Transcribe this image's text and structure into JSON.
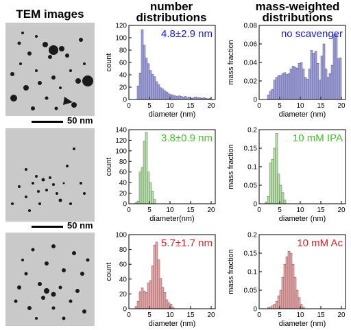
{
  "headers": {
    "tem": "TEM images",
    "number": "number distributions",
    "mass": "mass-weighted distributions"
  },
  "scale_bar_label": "50 nm",
  "colors": {
    "blue_fill": "#9fa0e6",
    "blue_text": "#1a1ad6",
    "green_fill": "#b8e6a8",
    "green_text": "#44c02c",
    "red_fill": "#f0a6a8",
    "red_text": "#e0202a",
    "image_gray": "#c9c9c9"
  },
  "chart_data": [
    {
      "type": "bar",
      "title": "",
      "annotation": "4.8±2.9 nm",
      "color": "blue",
      "xlabel": "diameter (nm)",
      "ylabel": "count",
      "xlim": [
        0,
        21
      ],
      "ylim": [
        0,
        120
      ],
      "xticks": [
        0,
        5,
        10,
        15,
        20
      ],
      "yticks": [
        0,
        20,
        40,
        60,
        80,
        100,
        120
      ],
      "bin_width": 0.5,
      "x": [
        2.0,
        2.5,
        3.0,
        3.5,
        4.0,
        4.5,
        5.0,
        5.5,
        6.0,
        6.5,
        7.0,
        7.5,
        8.0,
        8.5,
        9.0,
        9.5,
        10.0,
        10.5,
        11.0,
        11.5,
        12.0,
        12.5,
        13.0,
        13.5,
        14.0,
        14.5,
        15.0,
        15.5,
        16.0,
        16.5,
        17.0,
        17.5,
        18.0,
        18.5,
        19.0,
        19.5
      ],
      "values": [
        22,
        43,
        113,
        88,
        67,
        58,
        47,
        41,
        37,
        29,
        24,
        19,
        17,
        14,
        12,
        9,
        8,
        7,
        6,
        5,
        6,
        5,
        4,
        5,
        3,
        4,
        2,
        3,
        4,
        3,
        3,
        2,
        3,
        2,
        1,
        2
      ]
    },
    {
      "type": "bar",
      "title": "",
      "annotation": "no scavenger",
      "color": "blue",
      "xlabel": "diameter (nm)",
      "ylabel": "mass fraction",
      "xlim": [
        0,
        21
      ],
      "ylim": [
        0,
        0.08
      ],
      "xticks": [
        0,
        5,
        10,
        15,
        20
      ],
      "yticks": [
        0,
        0.02,
        0.04,
        0.06,
        0.08
      ],
      "bin_width": 0.5,
      "x": [
        2.0,
        2.5,
        3.0,
        3.5,
        4.0,
        4.5,
        5.0,
        5.5,
        6.0,
        6.5,
        7.0,
        7.5,
        8.0,
        8.5,
        9.0,
        9.5,
        10.0,
        10.5,
        11.0,
        11.5,
        12.0,
        12.5,
        13.0,
        13.5,
        14.0,
        14.5,
        15.0,
        15.5,
        16.0,
        16.5,
        17.0,
        17.5,
        18.0,
        18.5,
        19.0,
        19.5
      ],
      "values": [
        0.005,
        0.009,
        0.011,
        0.021,
        0.024,
        0.026,
        0.026,
        0.028,
        0.029,
        0.027,
        0.028,
        0.033,
        0.036,
        0.035,
        0.034,
        0.039,
        0.04,
        0.033,
        0.024,
        0.022,
        0.033,
        0.053,
        0.05,
        0.052,
        0.039,
        0.021,
        0.047,
        0.06,
        0.033,
        0.024,
        0.028,
        0.037,
        0.07,
        0.071,
        0.044,
        0.045
      ]
    },
    {
      "type": "bar",
      "title": "",
      "annotation": "3.8±0.9 nm",
      "color": "green",
      "xlabel": "diameter(nm)",
      "ylabel": "count",
      "xlim": [
        0,
        21
      ],
      "ylim": [
        0,
        140
      ],
      "xticks": [
        0,
        5,
        10,
        15,
        20
      ],
      "yticks": [
        0,
        20,
        40,
        60,
        80,
        100,
        120,
        140
      ],
      "bin_width": 0.5,
      "x": [
        1.5,
        2.0,
        2.5,
        3.0,
        3.5,
        4.0,
        4.5,
        5.0,
        5.5,
        6.0
      ],
      "values": [
        2,
        5,
        60,
        68,
        118,
        135,
        60,
        40,
        24,
        8
      ]
    },
    {
      "type": "bar",
      "title": "",
      "annotation": "10 mM IPA",
      "color": "green",
      "xlabel": "diameter (nm)",
      "ylabel": "mass fraction",
      "xlim": [
        0,
        21
      ],
      "ylim": [
        0,
        0.2
      ],
      "xticks": [
        0,
        5,
        10,
        15,
        20
      ],
      "yticks": [
        0,
        0.05,
        0.1,
        0.15,
        0.2
      ],
      "bin_width": 0.5,
      "x": [
        1.5,
        2.0,
        2.5,
        3.0,
        3.5,
        4.0,
        4.5,
        5.0,
        5.5,
        6.0
      ],
      "values": [
        0.005,
        0.02,
        0.11,
        0.12,
        0.15,
        0.19,
        0.08,
        0.05,
        0.03,
        0.01
      ]
    },
    {
      "type": "bar",
      "title": "",
      "annotation": "5.7±1.7 nm",
      "color": "red",
      "xlabel": "diameter (nm)",
      "ylabel": "count",
      "xlim": [
        0,
        21
      ],
      "ylim": [
        0,
        100
      ],
      "xticks": [
        0,
        5,
        10,
        15,
        20
      ],
      "yticks": [
        0,
        20,
        40,
        60,
        80,
        100
      ],
      "bin_width": 0.5,
      "x": [
        1.5,
        2.0,
        2.5,
        3.0,
        3.5,
        4.0,
        4.5,
        5.0,
        5.5,
        6.0,
        6.5,
        7.0,
        7.5,
        8.0,
        8.5,
        9.0,
        9.5,
        10.0,
        10.5
      ],
      "values": [
        3,
        10,
        23,
        28,
        24,
        22,
        35,
        38,
        58,
        86,
        90,
        66,
        41,
        29,
        22,
        12,
        8,
        6,
        2
      ]
    },
    {
      "type": "bar",
      "title": "",
      "annotation": "10 mM Ac",
      "color": "red",
      "xlabel": "diameter (nm)",
      "ylabel": "mass fraction",
      "xlim": [
        0,
        21
      ],
      "ylim": [
        0,
        0.2
      ],
      "xticks": [
        0,
        5,
        10,
        15,
        20
      ],
      "yticks": [
        0,
        0.05,
        0.1,
        0.15,
        0.2
      ],
      "bin_width": 0.5,
      "x": [
        2.0,
        2.5,
        3.0,
        3.5,
        4.0,
        4.5,
        5.0,
        5.5,
        6.0,
        6.5,
        7.0,
        7.5,
        8.0,
        8.5,
        9.0,
        9.5,
        10.0,
        10.5
      ],
      "values": [
        0.003,
        0.005,
        0.008,
        0.012,
        0.02,
        0.035,
        0.05,
        0.085,
        0.12,
        0.14,
        0.155,
        0.15,
        0.12,
        0.085,
        0.05,
        0.03,
        0.012,
        0.005
      ]
    }
  ]
}
